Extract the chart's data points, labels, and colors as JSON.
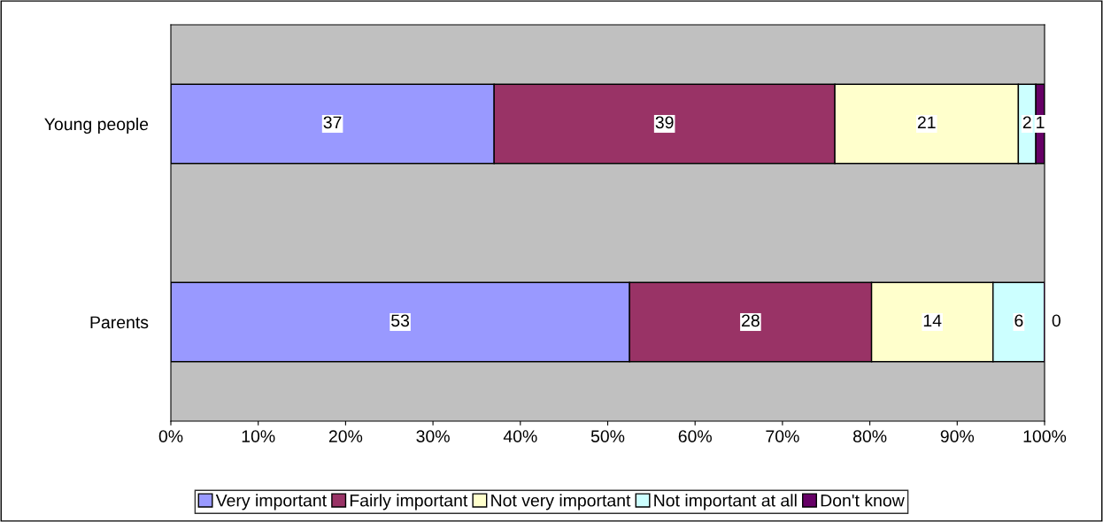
{
  "chart_data": {
    "type": "bar",
    "orientation": "horizontal",
    "stacked": true,
    "categories": [
      "Young people",
      "Parents"
    ],
    "series": [
      {
        "name": "Very important",
        "color": "#9999ff",
        "values": [
          37,
          52.5
        ],
        "value_labels": [
          "37",
          "53"
        ]
      },
      {
        "name": "Fairly important",
        "color": "#993366",
        "values": [
          39,
          27.7
        ],
        "value_labels": [
          "39",
          "28"
        ]
      },
      {
        "name": "Not very important",
        "color": "#ffffcc",
        "values": [
          21,
          13.9
        ],
        "value_labels": [
          "21",
          "14"
        ]
      },
      {
        "name": "Not important at all",
        "color": "#ccffff",
        "values": [
          2,
          5.9
        ],
        "value_labels": [
          "2",
          "6"
        ]
      },
      {
        "name": "Don't know",
        "color": "#660066",
        "values": [
          1,
          0
        ],
        "value_labels": [
          "1",
          "0"
        ]
      }
    ],
    "xlim": [
      0,
      100
    ],
    "xticks": [
      {
        "value": 0,
        "label": "0%"
      },
      {
        "value": 10,
        "label": "10%"
      },
      {
        "value": 20,
        "label": "20%"
      },
      {
        "value": 30,
        "label": "30%"
      },
      {
        "value": 40,
        "label": "40%"
      },
      {
        "value": 50,
        "label": "50%"
      },
      {
        "value": 60,
        "label": "60%"
      },
      {
        "value": 70,
        "label": "70%"
      },
      {
        "value": 80,
        "label": "80%"
      },
      {
        "value": 90,
        "label": "90%"
      },
      {
        "value": 100,
        "label": "100%"
      }
    ],
    "grid": false,
    "legend": "bottom"
  }
}
